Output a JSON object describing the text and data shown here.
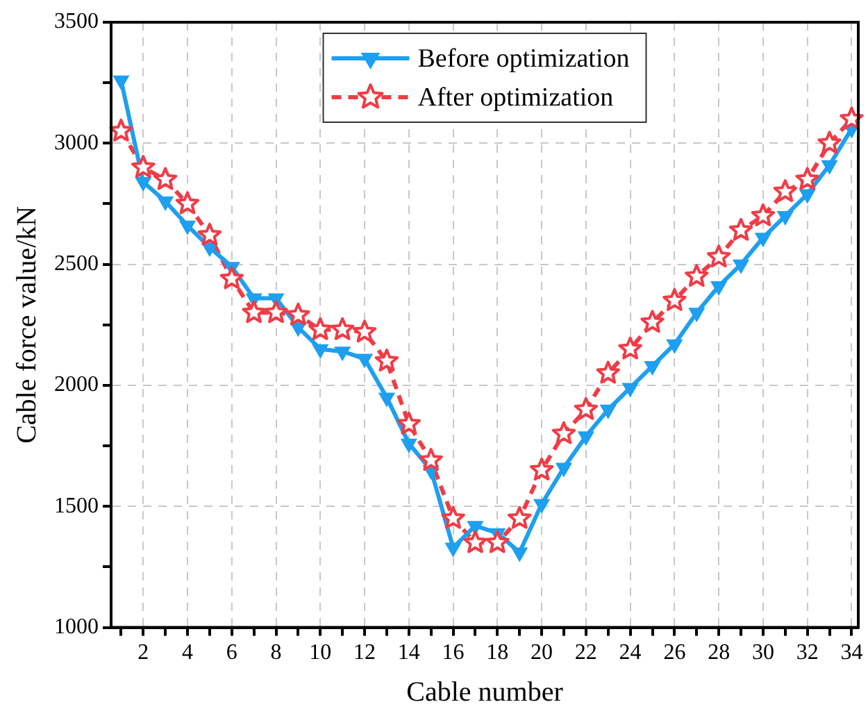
{
  "chart_data": {
    "type": "line",
    "xlabel": "Cable number",
    "ylabel": "Cable force value/kN",
    "x": [
      1,
      2,
      3,
      4,
      5,
      6,
      7,
      8,
      9,
      10,
      11,
      12,
      13,
      14,
      15,
      16,
      17,
      18,
      19,
      20,
      21,
      22,
      23,
      24,
      25,
      26,
      27,
      28,
      29,
      30,
      31,
      32,
      33,
      34
    ],
    "series": [
      {
        "name": "Before optimization",
        "color": "#1e9ff0",
        "marker": "triangle",
        "line_style": "solid",
        "values": [
          3260,
          2840,
          2760,
          2660,
          2570,
          2490,
          2360,
          2360,
          2240,
          2150,
          2140,
          2110,
          1950,
          1760,
          1650,
          1330,
          1420,
          1390,
          1310,
          1510,
          1660,
          1790,
          1900,
          1990,
          2080,
          2170,
          2300,
          2410,
          2500,
          2610,
          2700,
          2790,
          2910,
          3060
        ]
      },
      {
        "name": "After optimization",
        "color": "#f03c46",
        "marker": "star",
        "line_style": "dashed",
        "values": [
          3050,
          2900,
          2850,
          2750,
          2620,
          2440,
          2300,
          2300,
          2290,
          2230,
          2230,
          2220,
          2100,
          1840,
          1690,
          1450,
          1350,
          1350,
          1450,
          1650,
          1800,
          1900,
          2050,
          2150,
          2260,
          2350,
          2450,
          2530,
          2640,
          2700,
          2800,
          2850,
          3000,
          3100
        ]
      }
    ],
    "xlim": [
      0.55,
      34.3
    ],
    "xticks": [
      {
        "value": 1,
        "label": null
      },
      2,
      {
        "value": 3,
        "label": null
      },
      4,
      {
        "value": 5,
        "label": null
      },
      6,
      {
        "value": 7,
        "label": null
      },
      8,
      {
        "value": 9,
        "label": null
      },
      10,
      {
        "value": 11,
        "label": null
      },
      12,
      {
        "value": 13,
        "label": null
      },
      14,
      {
        "value": 15,
        "label": null
      },
      16,
      {
        "value": 17,
        "label": null
      },
      18,
      {
        "value": 19,
        "label": null
      },
      20,
      {
        "value": 21,
        "label": null
      },
      22,
      {
        "value": 23,
        "label": null
      },
      24,
      {
        "value": 25,
        "label": null
      },
      26,
      {
        "value": 27,
        "label": null
      },
      28,
      {
        "value": 29,
        "label": null
      },
      30,
      {
        "value": 31,
        "label": null
      },
      32,
      {
        "value": 33,
        "label": null
      },
      34
    ],
    "ylim": [
      1000,
      3500
    ],
    "yticks": [
      1000,
      {
        "value": 1250,
        "label": null
      },
      1500,
      {
        "value": 1750,
        "label": null
      },
      2000,
      {
        "value": 2250,
        "label": null
      },
      2500,
      {
        "value": 2750,
        "label": null
      },
      3000,
      {
        "value": 3250,
        "label": null
      },
      3500
    ],
    "grid": true,
    "legend": "top"
  }
}
